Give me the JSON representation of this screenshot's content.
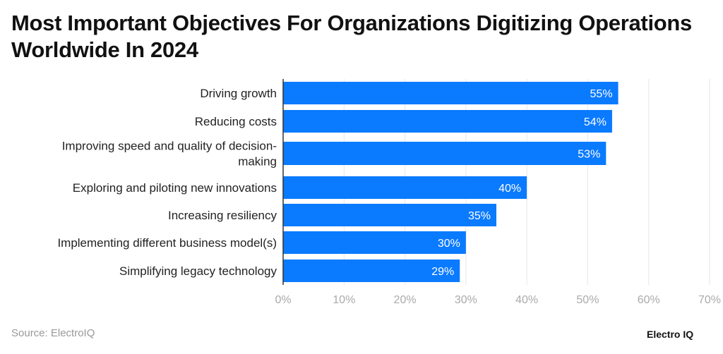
{
  "title": "Most Important Objectives For Organizations Digitizing Operations Worldwide In 2024",
  "source": "Source: ElectroIQ",
  "logo": "Electro IQ",
  "chart_data": {
    "type": "bar",
    "orientation": "horizontal",
    "categories": [
      "Driving growth",
      "Reducing costs",
      "Improving speed and quality of decision-making",
      "Exploring and piloting new innovations",
      "Increasing resiliency",
      "Implementing different business model(s)",
      "Simplifying legacy technology"
    ],
    "category_lines": [
      [
        "Driving growth"
      ],
      [
        "Reducing costs"
      ],
      [
        "Improving speed and quality of decision-",
        "making"
      ],
      [
        "Exploring and piloting new innovations"
      ],
      [
        "Increasing resiliency"
      ],
      [
        "Implementing different business model(s)"
      ],
      [
        "Simplifying legacy technology"
      ]
    ],
    "values": [
      55,
      54,
      53,
      40,
      35,
      30,
      29
    ],
    "data_labels": [
      "55%",
      "54%",
      "53%",
      "40%",
      "35%",
      "30%",
      "29%"
    ],
    "xlim": [
      0,
      70
    ],
    "x_ticks": [
      "0%",
      "10%",
      "20%",
      "30%",
      "40%",
      "50%",
      "60%",
      "70%"
    ],
    "grid": true,
    "bar_color": "#0a7aff",
    "title": "Most Important Objectives For Organizations Digitizing Operations Worldwide In 2024"
  }
}
